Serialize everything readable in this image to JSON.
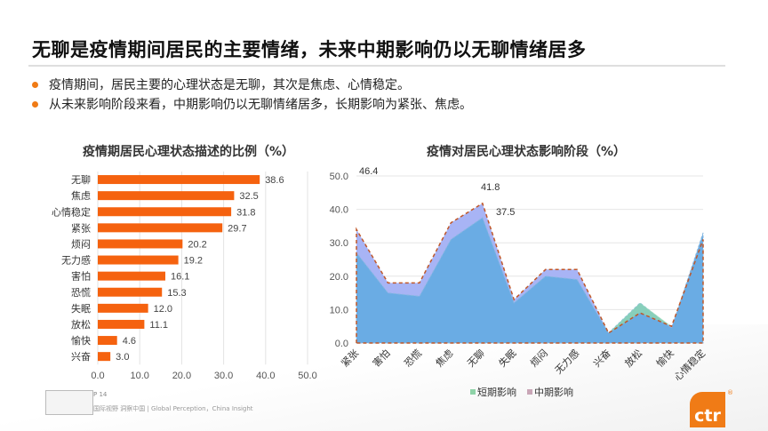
{
  "header": {
    "title": "无聊是疫情期间居民的主要情绪，未来中期影响仍以无聊情绪居多",
    "bullets": [
      "疫情期间，居民主要的心理状态是无聊，其次是焦虑、心情稳定。",
      "从未来影响阶段来看，中期影响仍以无聊情绪居多，长期影响为紧张、焦虑。"
    ],
    "bullet_color": "#f07b16"
  },
  "footer": {
    "page": "P 14",
    "tagline": "国际视野  洞察中国 |  Global Perception，China Insight",
    "brand": "ctr",
    "brand_mark": "®",
    "brand_color": "#f07b16"
  },
  "chart_data": [
    {
      "type": "bar",
      "orientation": "horizontal",
      "title": "疫情期居民心理状态描述的比例（%）",
      "categories": [
        "无聊",
        "焦虑",
        "心情稳定",
        "紧张",
        "烦闷",
        "无力感",
        "害怕",
        "恐慌",
        "失眠",
        "放松",
        "愉快",
        "兴奋"
      ],
      "values": [
        38.6,
        32.5,
        31.8,
        29.7,
        20.2,
        19.2,
        16.1,
        15.3,
        12.0,
        11.1,
        4.6,
        3.0
      ],
      "value_labels": [
        "38.6",
        "32.5",
        "31.8",
        "29.7",
        "20.2",
        "19.2",
        "16.1",
        "15.3",
        "12.0",
        "11.1",
        "4.6",
        "3.0"
      ],
      "xticks": [
        "0.0",
        "10.0",
        "20.0",
        "30.0",
        "40.0",
        "50.0"
      ],
      "xlim": [
        0,
        50
      ],
      "grid": true,
      "color": "#f5620f",
      "xlabel": "",
      "ylabel": ""
    },
    {
      "type": "area",
      "title": "疫情对居民心理状态影响阶段（%）",
      "categories": [
        "紧张",
        "害怕",
        "恐慌",
        "焦虑",
        "无聊",
        "失眠",
        "烦闷",
        "无力感",
        "兴奋",
        "放松",
        "愉快",
        "心情稳定"
      ],
      "series": [
        {
          "name": "短期影响",
          "values": [
            27.0,
            15.0,
            14.0,
            31.0,
            37.5,
            12.0,
            20.0,
            19.0,
            3.0,
            12.0,
            4.5,
            33.0
          ],
          "color": "#6aace4",
          "legend_color": "#8fd3a8"
        },
        {
          "name": "中期影响",
          "values": [
            34.0,
            18.0,
            18.0,
            36.0,
            41.8,
            13.0,
            22.0,
            22.0,
            3.0,
            9.0,
            5.0,
            31.0
          ],
          "color": "#a8b4f5",
          "legend_color": "#c9a6b7"
        }
      ],
      "annotations": [
        "46.4",
        "41.8",
        "37.5"
      ],
      "yticks": [
        "0.0",
        "10.0",
        "20.0",
        "30.0",
        "40.0",
        "50.0"
      ],
      "ylim": [
        0,
        50
      ],
      "grid": true,
      "legend_position": "bottom",
      "xlabel": "",
      "ylabel": ""
    }
  ]
}
